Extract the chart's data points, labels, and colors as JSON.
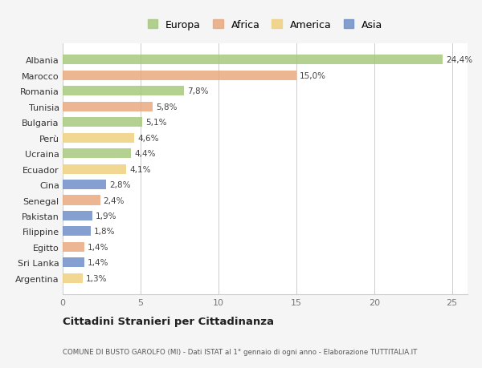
{
  "countries": [
    "Albania",
    "Marocco",
    "Romania",
    "Tunisia",
    "Bulgaria",
    "Perù",
    "Ucraina",
    "Ecuador",
    "Cina",
    "Senegal",
    "Pakistan",
    "Filippine",
    "Egitto",
    "Sri Lanka",
    "Argentina"
  ],
  "values": [
    24.4,
    15.0,
    7.8,
    5.8,
    5.1,
    4.6,
    4.4,
    4.1,
    2.8,
    2.4,
    1.9,
    1.8,
    1.4,
    1.4,
    1.3
  ],
  "labels": [
    "24,4%",
    "15,0%",
    "7,8%",
    "5,8%",
    "5,1%",
    "4,6%",
    "4,4%",
    "4,1%",
    "2,8%",
    "2,4%",
    "1,9%",
    "1,8%",
    "1,4%",
    "1,4%",
    "1,3%"
  ],
  "continents": [
    "Europa",
    "Africa",
    "Europa",
    "Africa",
    "Europa",
    "America",
    "Europa",
    "America",
    "Asia",
    "Africa",
    "Asia",
    "Asia",
    "Africa",
    "Asia",
    "America"
  ],
  "colors": {
    "Europa": "#a8c97f",
    "Africa": "#e8a97e",
    "America": "#f0d080",
    "Asia": "#7090c8"
  },
  "title": "Cittadini Stranieri per Cittadinanza",
  "subtitle": "COMUNE DI BUSTO GAROLFO (MI) - Dati ISTAT al 1° gennaio di ogni anno - Elaborazione TUTTITALIA.IT",
  "xlim": [
    0,
    26
  ],
  "xticks": [
    0,
    5,
    10,
    15,
    20,
    25
  ],
  "background_color": "#f5f5f5",
  "bar_background": "#ffffff"
}
